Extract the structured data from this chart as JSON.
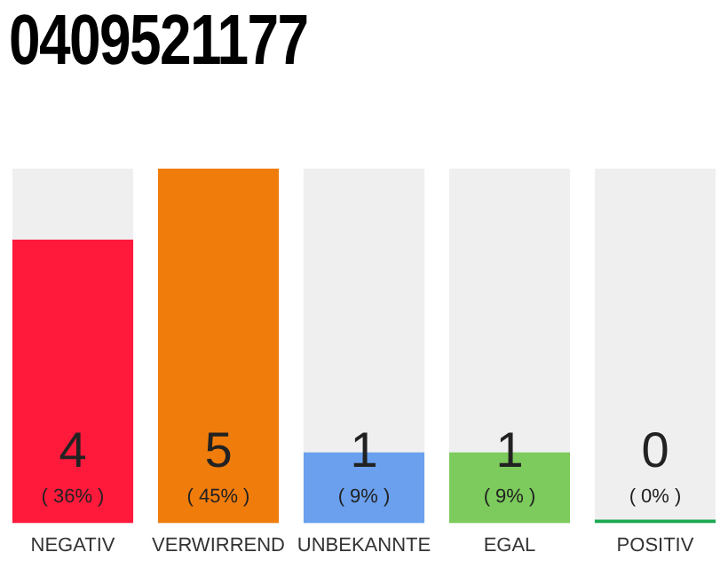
{
  "chart_data": {
    "type": "bar",
    "title": "0409521177",
    "categories": [
      "NEGATIV",
      "VERWIRREND",
      "UNBEKANNTE",
      "EGAL",
      "POSITIV"
    ],
    "values": [
      4,
      5,
      1,
      1,
      0
    ],
    "colors": [
      "#ff1a3c",
      "#f07c0c",
      "#6aa0ee",
      "#7ccb5c",
      "#1aaa50"
    ],
    "data_labels": true,
    "annotations": [
      "( 36% )",
      "( 45% )",
      "( 9% )",
      "( 9% )",
      "( 0% )"
    ],
    "grid": false,
    "legend": false,
    "tick_labels": "x"
  }
}
